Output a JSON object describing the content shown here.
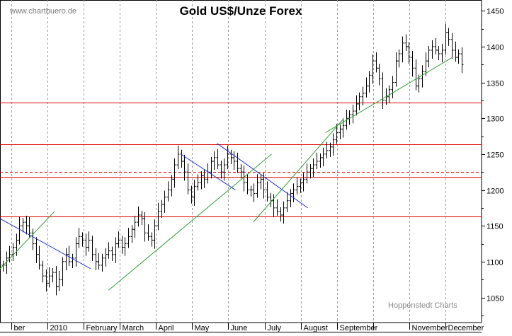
{
  "watermark": "www.chartbuero.de",
  "credit": "Hoppenstedt Charts",
  "chart_data": {
    "type": "ohlc",
    "title": "Gold US$/Unze Forex",
    "xlabel": "",
    "ylabel": "",
    "ylim": [
      1015,
      1465
    ],
    "y_ticks": [
      1050,
      1100,
      1150,
      1200,
      1250,
      1300,
      1350,
      1400,
      1450
    ],
    "month_labels": [
      "ber",
      "2010",
      "February",
      "March",
      "April",
      "May",
      "June",
      "July",
      "August",
      "September",
      "",
      "November",
      "December"
    ],
    "grid": "vertical dashed month separators",
    "y_axis_position": "right",
    "series": [
      {
        "values": [
          1095,
          1105,
          1110,
          1120,
          1130,
          1150,
          1155,
          1150,
          1140,
          1125,
          1110,
          1095,
          1080,
          1070,
          1080,
          1085,
          1065,
          1075,
          1100,
          1110,
          1100,
          1105,
          1125,
          1135,
          1130,
          1120,
          1130,
          1110,
          1100,
          1095,
          1105,
          1110,
          1115,
          1110,
          1125,
          1130,
          1120,
          1125,
          1135,
          1145,
          1155,
          1165,
          1160,
          1140,
          1135,
          1130,
          1150,
          1170,
          1180,
          1190,
          1200,
          1215,
          1235,
          1250,
          1240,
          1225,
          1200,
          1190,
          1205,
          1210,
          1220,
          1215,
          1225,
          1240,
          1245,
          1235,
          1225,
          1235,
          1250,
          1245,
          1240,
          1230,
          1225,
          1210,
          1200,
          1200,
          1195,
          1210,
          1215,
          1200,
          1190,
          1185,
          1175,
          1170,
          1165,
          1175,
          1185,
          1195,
          1200,
          1205,
          1210,
          1215,
          1225,
          1230,
          1235,
          1240,
          1245,
          1250,
          1255,
          1260,
          1270,
          1280,
          1285,
          1290,
          1300,
          1305,
          1310,
          1320,
          1330,
          1335,
          1345,
          1360,
          1380,
          1370,
          1355,
          1325,
          1330,
          1340,
          1350,
          1380,
          1390,
          1405,
          1400,
          1385,
          1370,
          1345,
          1355,
          1365,
          1380,
          1395,
          1400,
          1395,
          1390,
          1395,
          1420,
          1410,
          1395,
          1385,
          1390,
          1375
        ],
        "color": "#000000"
      }
    ],
    "trendlines": [
      {
        "color": "#1f2fd0",
        "from": [
          "ber",
          1160
        ],
        "to": [
          "February",
          1090
        ]
      },
      {
        "color": "#1f2fd0",
        "from": [
          "May",
          1250
        ],
        "to": [
          "June",
          1200
        ]
      },
      {
        "color": "#1f2fd0",
        "from": [
          "June",
          1265
        ],
        "to": [
          "August",
          1175
        ]
      },
      {
        "color": "#2e9e2e",
        "from": [
          "ber",
          1090
        ],
        "to": [
          "2010",
          1170
        ]
      },
      {
        "color": "#2e9e2e",
        "from": [
          "March",
          1060
        ],
        "to": [
          "July",
          1250
        ]
      },
      {
        "color": "#2e9e2e",
        "from": [
          "July",
          1155
        ],
        "to": [
          "September",
          1300
        ]
      },
      {
        "color": "#2e9e2e",
        "from": [
          "September",
          1280
        ],
        "to": [
          "December",
          1385
        ]
      }
    ],
    "horizontal_lines": [
      {
        "value": 1163,
        "color": "#e00000",
        "style": "solid"
      },
      {
        "value": 1218,
        "color": "#e00000",
        "style": "solid"
      },
      {
        "value": 1225,
        "color": "#e00000",
        "style": "dashed"
      },
      {
        "value": 1264,
        "color": "#e00000",
        "style": "solid"
      },
      {
        "value": 1322,
        "color": "#e00000",
        "style": "solid"
      }
    ]
  }
}
